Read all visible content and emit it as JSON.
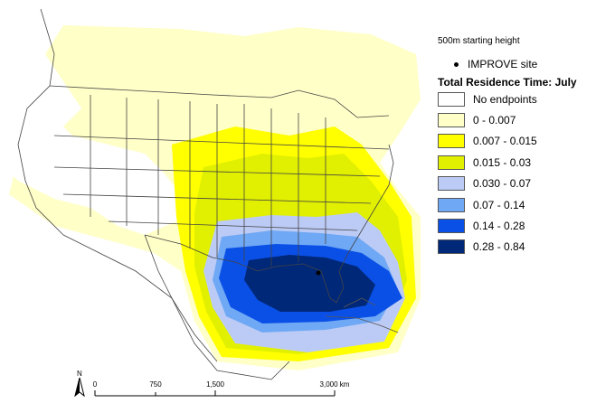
{
  "legend": {
    "note": "500m starting height",
    "site_label": "IMPROVE site",
    "title": "Total Residence Time: July",
    "classes": [
      {
        "label": "No endpoints",
        "color": "#ffffff"
      },
      {
        "label": "0 - 0.007",
        "color": "#ffffc8"
      },
      {
        "label": "0.007 - 0.015",
        "color": "#ffff00"
      },
      {
        "label": "0.015 - 0.03",
        "color": "#e1f000"
      },
      {
        "label": "0.030 - 0.07",
        "color": "#bccbf5"
      },
      {
        "label": "0.07 - 0.14",
        "color": "#6fa8f5"
      },
      {
        "label": "0.14 - 0.28",
        "color": "#0a50e6"
      },
      {
        "label": "0.28 - 0.84",
        "color": "#002878"
      }
    ]
  },
  "scalebar": {
    "ticks": [
      "0",
      "750",
      "1,500",
      "3,000 km"
    ]
  },
  "north_arrow": "N"
}
